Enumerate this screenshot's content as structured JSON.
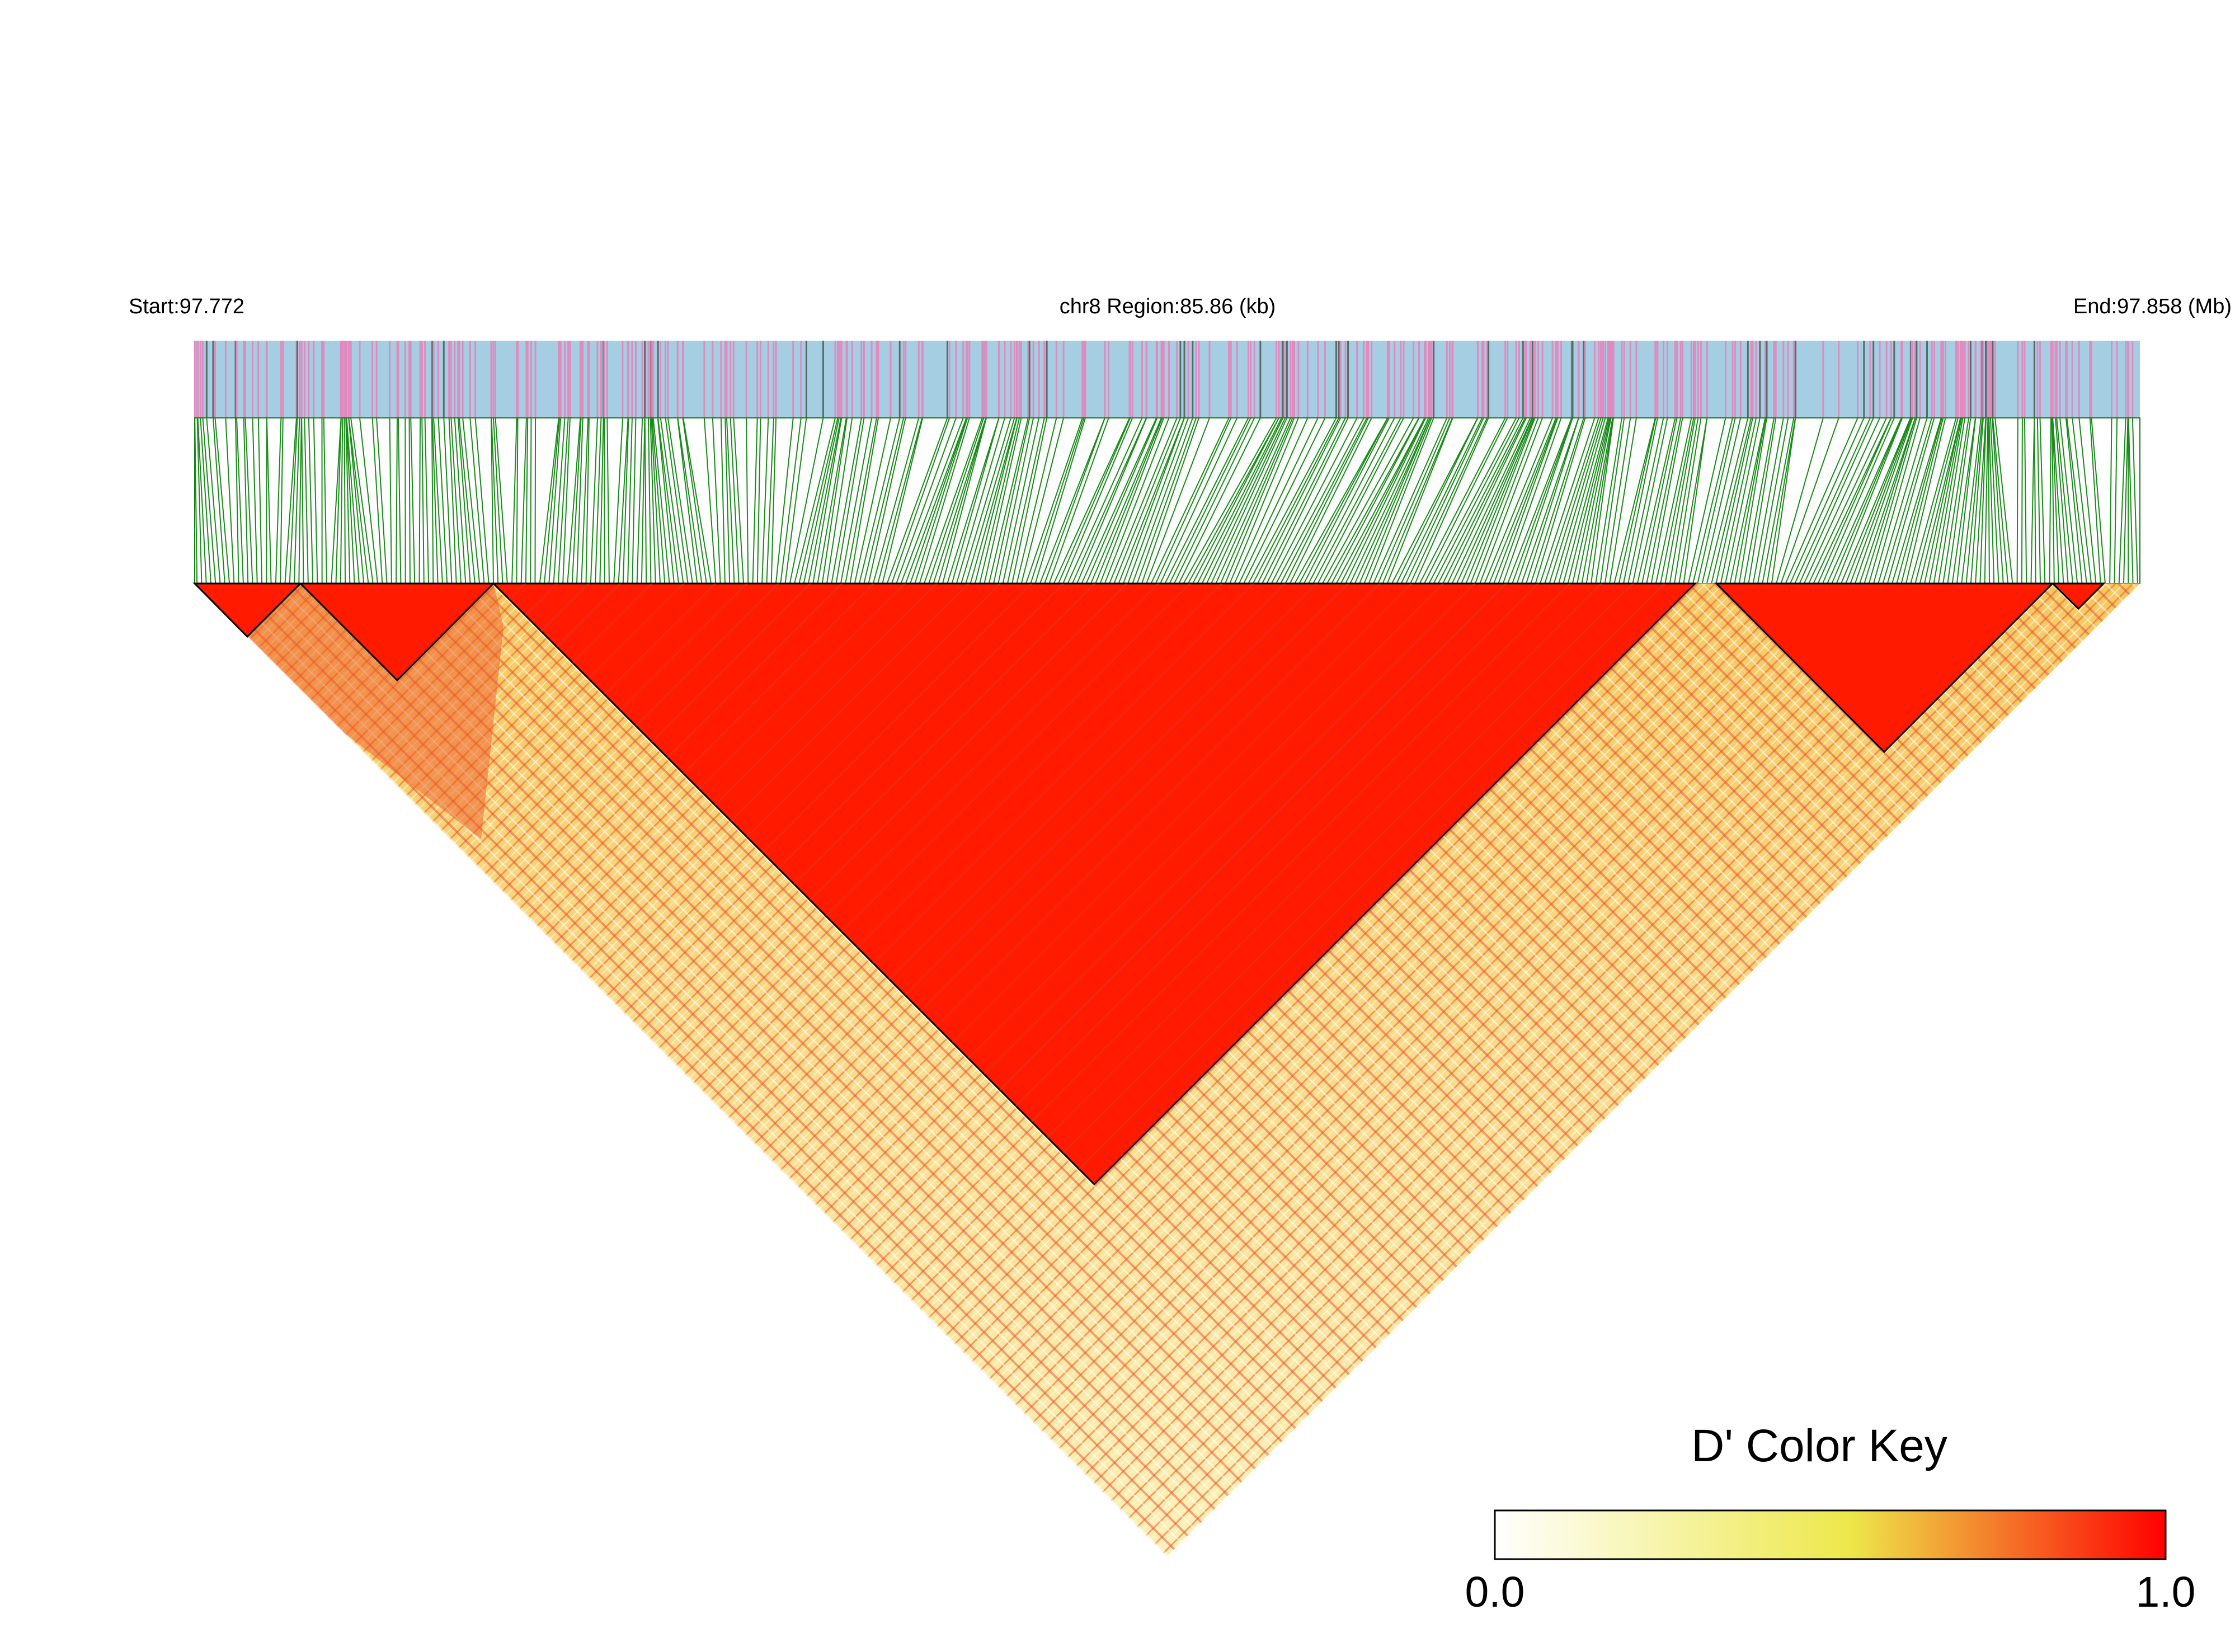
{
  "header": {
    "start": "Start:97.772",
    "region": "chr8 Region:85.86 (kb)",
    "end": "End:97.858 (Mb)"
  },
  "color_key": {
    "title": "D' Color Key",
    "ticks": [
      {
        "value": 0,
        "label": "0.0"
      },
      {
        "value": 1,
        "label": "1.0"
      }
    ]
  }
}
